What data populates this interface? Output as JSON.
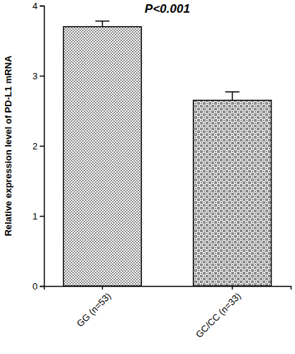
{
  "chart_data": {
    "type": "bar",
    "title": "P<0.001",
    "y_label": "Relative expression level of PD-L1 mRNA",
    "categories": [
      "GG (n=53)",
      "GC/CC (n=33)"
    ],
    "values": [
      3.7,
      2.65
    ],
    "errors": [
      0.08,
      0.12
    ],
    "color": "#8a8a8a",
    "ylim": [
      0,
      4
    ],
    "yticks": [
      0,
      1,
      2,
      3,
      4
    ],
    "grid": false
  }
}
